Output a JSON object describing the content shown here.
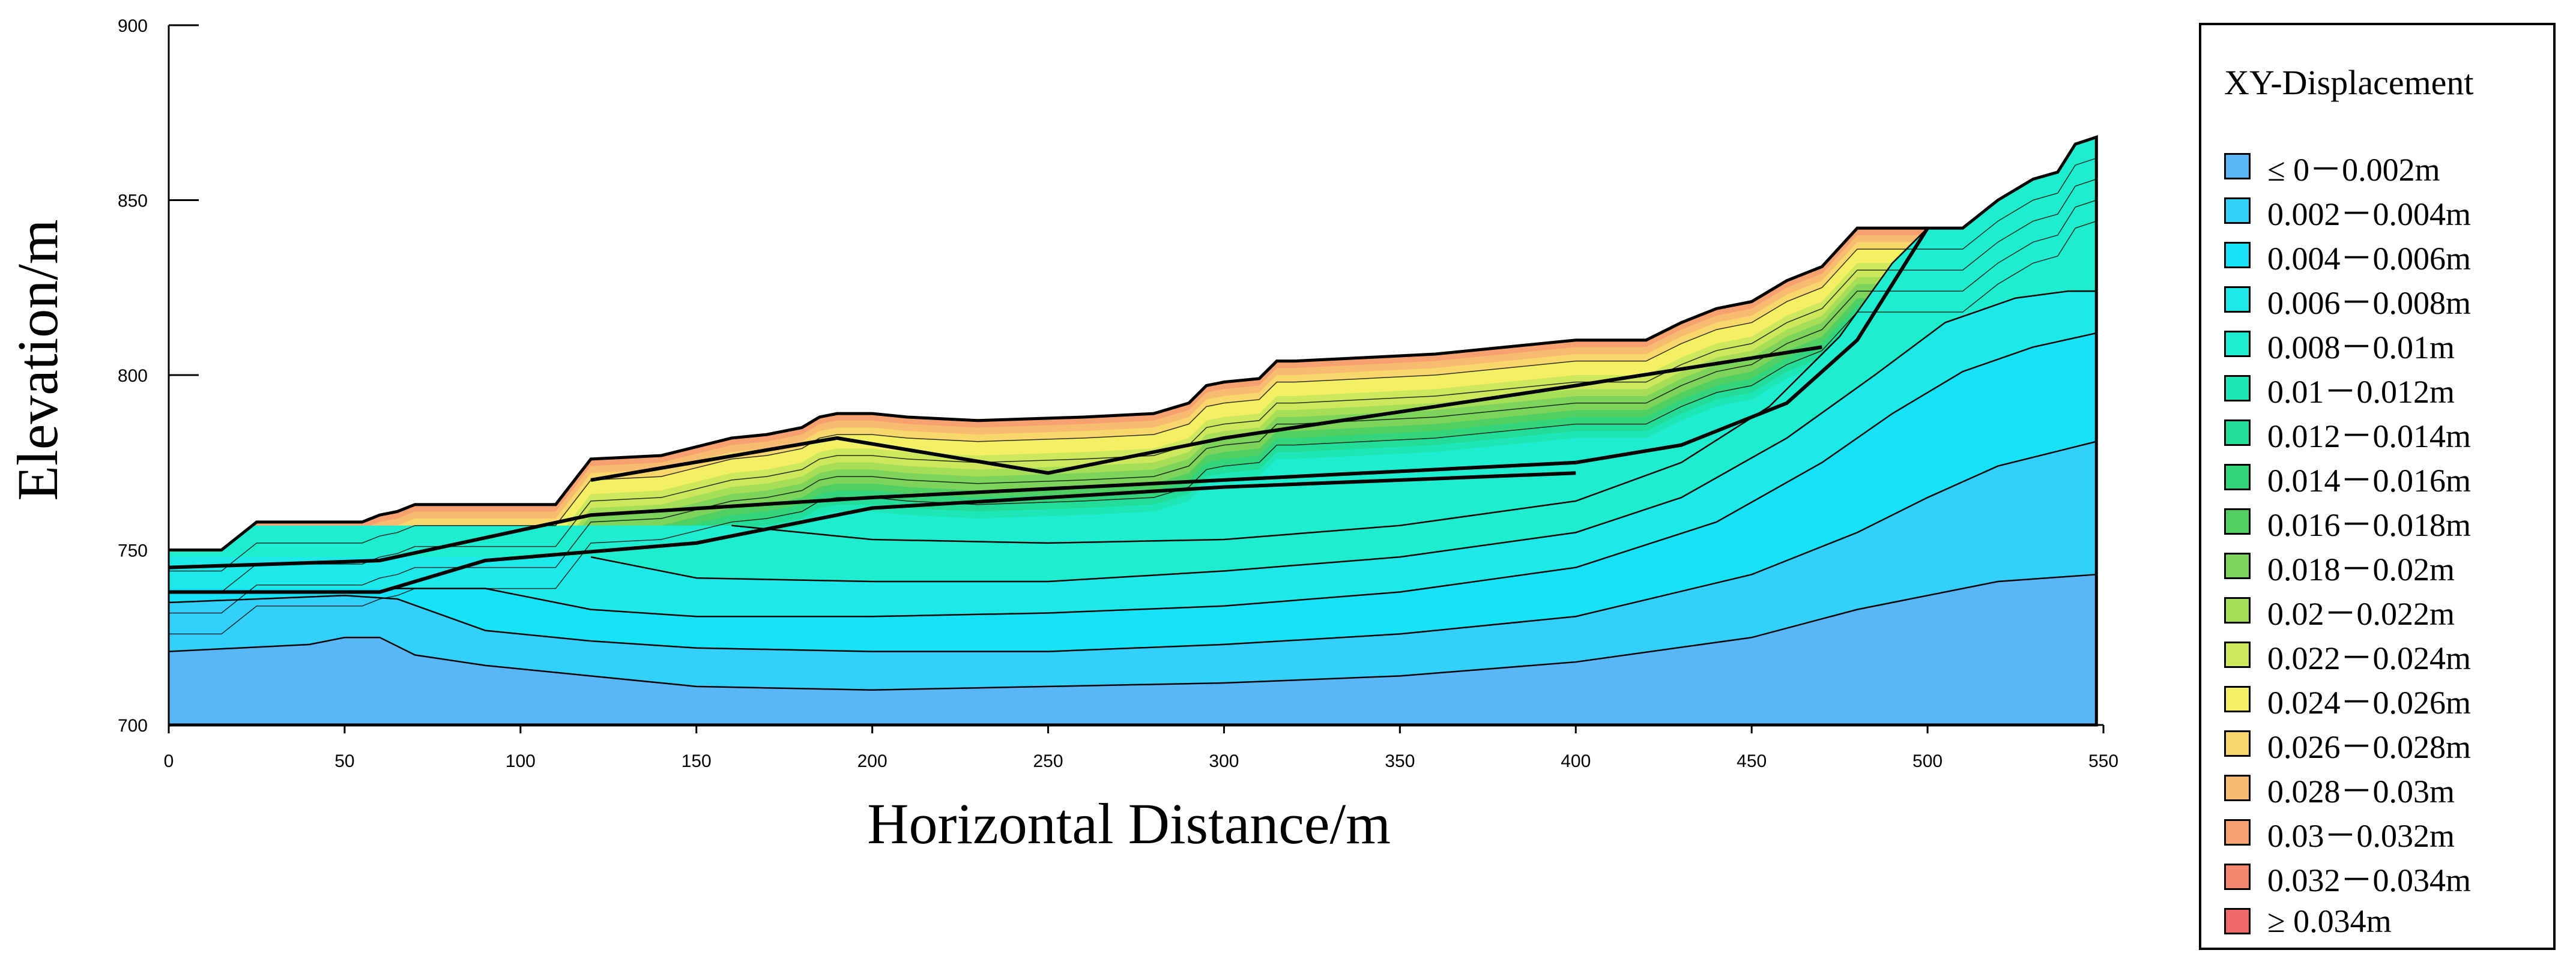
{
  "chart_data": {
    "type": "area",
    "title": "",
    "xlabel": "Horizontal Distance/m",
    "ylabel": "Elevation/m",
    "xlim": [
      0,
      550
    ],
    "ylim": [
      700,
      900
    ],
    "x_ticks": [
      0,
      50,
      100,
      150,
      200,
      250,
      300,
      350,
      400,
      450,
      500,
      550
    ],
    "y_ticks": [
      700,
      750,
      800,
      850,
      900
    ],
    "grid": false,
    "legend": {
      "title": "XY-Displacement",
      "position": "right",
      "entries": [
        {
          "label": "≤ 0－0.002m",
          "color": "#5ab7f7"
        },
        {
          "label": "0.002－0.004m",
          "color": "#32d0fa"
        },
        {
          "label": "0.004－0.006m",
          "color": "#16e2f8"
        },
        {
          "label": "0.006－0.008m",
          "color": "#1ee9e9"
        },
        {
          "label": "0.008－0.01m",
          "color": "#1eedcf"
        },
        {
          "label": "0.01－0.012m",
          "color": "#1ee6b6"
        },
        {
          "label": "0.012－0.014m",
          "color": "#22dc98"
        },
        {
          "label": "0.014－0.016m",
          "color": "#34d47c"
        },
        {
          "label": "0.016－0.018m",
          "color": "#50d062"
        },
        {
          "label": "0.018－0.02m",
          "color": "#7ed45a"
        },
        {
          "label": "0.02－0.022m",
          "color": "#a6de58"
        },
        {
          "label": "0.022－0.024m",
          "color": "#cde85c"
        },
        {
          "label": "0.024－0.026m",
          "color": "#f3f066"
        },
        {
          "label": "0.026－0.028m",
          "color": "#f8d76c"
        },
        {
          "label": "0.028－0.03m",
          "color": "#f8bc70"
        },
        {
          "label": "0.03－0.032m",
          "color": "#f7a170"
        },
        {
          "label": "0.032－0.034m",
          "color": "#f5876e"
        },
        {
          "label": "≥ 0.034m",
          "color": "#f06a6a"
        }
      ]
    },
    "ground_surface": {
      "x": [
        0,
        15,
        25,
        55,
        60,
        65,
        70,
        80,
        90,
        100,
        110,
        120,
        140,
        160,
        170,
        180,
        185,
        190,
        200,
        210,
        230,
        260,
        280,
        290,
        295,
        300,
        310,
        315,
        320,
        340,
        360,
        380,
        400,
        420,
        430,
        440,
        450,
        460,
        470,
        480,
        485,
        510,
        520,
        530,
        537,
        542,
        548
      ],
      "y": [
        750,
        750,
        758,
        758,
        760,
        761,
        763,
        763,
        763,
        763,
        763,
        776,
        777,
        782,
        783,
        785,
        788,
        789,
        789,
        788,
        787,
        788,
        789,
        792,
        797,
        798,
        799,
        804,
        804,
        805,
        806,
        808,
        810,
        810,
        815,
        819,
        821,
        827,
        831,
        842,
        842,
        842,
        850,
        856,
        858,
        866,
        868
      ]
    },
    "contours": [
      {
        "label": "0.002 m",
        "x": [
          0,
          40,
          50,
          60,
          70,
          90,
          120,
          150,
          200,
          250,
          300,
          350,
          400,
          450,
          480,
          520,
          548
        ],
        "y": [
          721,
          723,
          725,
          725,
          720,
          717,
          714,
          711,
          710,
          711,
          712,
          714,
          718,
          725,
          733,
          741,
          743
        ]
      },
      {
        "label": "0.004 m",
        "x": [
          0,
          50,
          65,
          90,
          120,
          150,
          200,
          250,
          300,
          350,
          400,
          450,
          480,
          500,
          520,
          548
        ],
        "y": [
          735,
          737,
          736,
          727,
          724,
          722,
          721,
          721,
          723,
          726,
          731,
          743,
          755,
          765,
          774,
          781
        ]
      },
      {
        "label": "0.006 m",
        "x": [
          62,
          90,
          120,
          150,
          200,
          250,
          300,
          350,
          400,
          440,
          470,
          490,
          510,
          530,
          548
        ],
        "y": [
          739,
          739,
          733,
          731,
          731,
          732,
          734,
          738,
          745,
          758,
          775,
          789,
          801,
          808,
          812
        ]
      },
      {
        "label": "0.008 m",
        "x": [
          120,
          150,
          200,
          250,
          300,
          350,
          400,
          430,
          460,
          485,
          505,
          525,
          540,
          548
        ],
        "y": [
          748,
          742,
          741,
          741,
          744,
          748,
          755,
          765,
          782,
          800,
          815,
          822,
          824,
          824
        ]
      },
      {
        "label": "0.01 m",
        "x": [
          160,
          200,
          250,
          300,
          350,
          400,
          430,
          455,
          475,
          490,
          500
        ],
        "y": [
          757,
          753,
          752,
          753,
          757,
          764,
          775,
          791,
          811,
          832,
          842
        ]
      }
    ]
  }
}
